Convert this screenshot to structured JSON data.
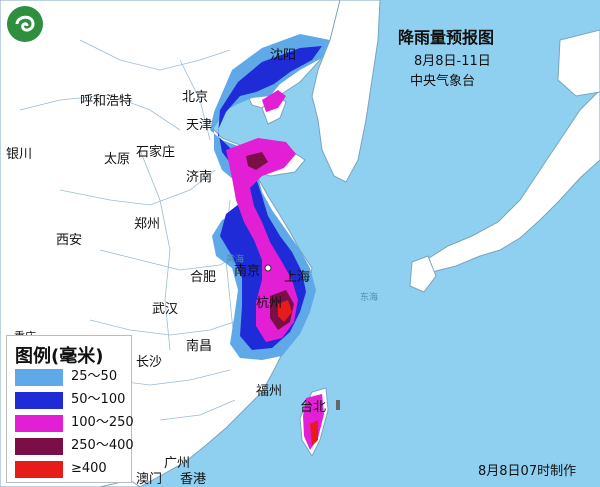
{
  "title": "降雨量预报图",
  "date_range": "8月8日-11日",
  "issuer": "中央气象台",
  "footer": "8月8日07时制作",
  "legend": {
    "title": "图例(毫米)",
    "items": [
      {
        "label": "25～50",
        "color": "#5fa9e8"
      },
      {
        "label": "50～100",
        "color": "#1f2bd6"
      },
      {
        "label": "100～250",
        "color": "#e21fd4"
      },
      {
        "label": "250～400",
        "color": "#7a0f47"
      },
      {
        "label": "≥400",
        "color": "#e81b1b"
      }
    ]
  },
  "cities": [
    {
      "name": "沈阳",
      "id": "shenyang"
    },
    {
      "name": "呼和浩特",
      "id": "hohhot"
    },
    {
      "name": "北京",
      "id": "beijing"
    },
    {
      "name": "天津",
      "id": "tianjin"
    },
    {
      "name": "银川",
      "id": "yinchuan"
    },
    {
      "name": "太原",
      "id": "taiyuan"
    },
    {
      "name": "石家庄",
      "id": "shijiazhuang"
    },
    {
      "name": "济南",
      "id": "jinan"
    },
    {
      "name": "郑州",
      "id": "zhengzhou"
    },
    {
      "name": "西安",
      "id": "xian"
    },
    {
      "name": "合肥",
      "id": "hefei"
    },
    {
      "name": "南京",
      "id": "nanjing"
    },
    {
      "name": "上海",
      "id": "shanghai"
    },
    {
      "name": "武汉",
      "id": "wuhan"
    },
    {
      "name": "杭州",
      "id": "hangzhou"
    },
    {
      "name": "南昌",
      "id": "nanchang"
    },
    {
      "name": "长沙",
      "id": "changsha"
    },
    {
      "name": "福州",
      "id": "fuzhou"
    },
    {
      "name": "台北",
      "id": "taipei"
    },
    {
      "name": "广州",
      "id": "guangzhou"
    },
    {
      "name": "澳门",
      "id": "macau"
    },
    {
      "name": "香港",
      "id": "hongkong"
    },
    {
      "name": "重庆",
      "id": "chongqing"
    }
  ],
  "colors": {
    "sea": "#8fd0f0",
    "land": "#ffffff",
    "border": "#9bbcd0"
  }
}
